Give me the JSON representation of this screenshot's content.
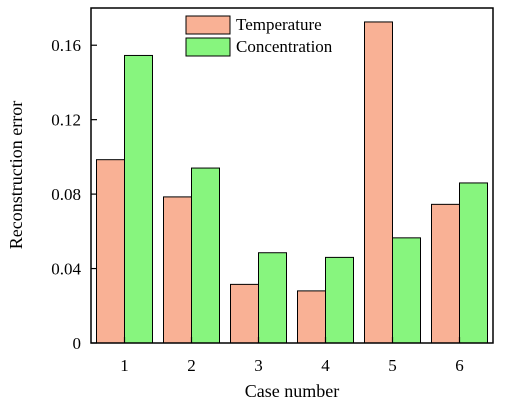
{
  "chart_data": {
    "type": "bar",
    "title": "",
    "xlabel": "Case number",
    "ylabel": "Reconstruction error",
    "categories": [
      "1",
      "2",
      "3",
      "4",
      "5",
      "6"
    ],
    "series": [
      {
        "name": "Temperature",
        "color": "#F9B195",
        "values": [
          0.0985,
          0.0785,
          0.0315,
          0.028,
          0.1725,
          0.0745
        ]
      },
      {
        "name": "Concentration",
        "color": "#87F57E",
        "values": [
          0.1545,
          0.094,
          0.0485,
          0.046,
          0.0565,
          0.086
        ]
      }
    ],
    "ylim": [
      0,
      0.18
    ],
    "yticks": [
      {
        "value": 0,
        "label": "0"
      },
      {
        "value": 0.04,
        "label": "0.04"
      },
      {
        "value": 0.08,
        "label": "0.08"
      },
      {
        "value": 0.12,
        "label": "0.12"
      },
      {
        "value": 0.16,
        "label": "0.16"
      }
    ],
    "grid": false,
    "legend_position": "top-center"
  }
}
